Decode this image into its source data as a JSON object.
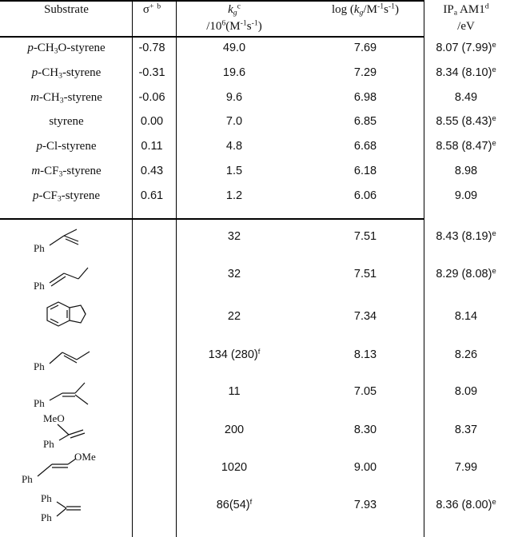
{
  "headers": {
    "substrate": "Substrate",
    "sigma": {
      "base": "σ",
      "sup1": "+",
      "sup2": "b"
    },
    "kg": {
      "k": "k",
      "sub": "g",
      "sup": "c",
      "unit_pre": "/10",
      "unit_exp": "6",
      "unit_mid": "(M",
      "unit_exp2": "-1",
      "unit_s": "s",
      "unit_exp3": "-1",
      "unit_end": ")"
    },
    "log": {
      "pre": "log (",
      "k": "k",
      "sub": "g",
      "mid": "/M",
      "exp1": "-1",
      "s": "s",
      "exp2": "-1",
      "end": ")"
    },
    "ip": {
      "main": "IP",
      "sub": "a",
      "rest": " AM1",
      "sup": "d",
      "unit": "/eV"
    }
  },
  "substituted_styrenes": [
    {
      "prefix": "p",
      "name": "-CH",
      "sub": "3",
      "rest": "O-styrene",
      "sigma": "-0.78",
      "kg": "49.0",
      "log": "7.69",
      "ip": "8.07 (7.99)",
      "ip_sup": "e"
    },
    {
      "prefix": "p",
      "name": "-CH",
      "sub": "3",
      "rest": "-styrene",
      "sigma": "-0.31",
      "kg": "19.6",
      "log": "7.29",
      "ip": "8.34 (8.10)",
      "ip_sup": "e"
    },
    {
      "prefix": "m",
      "name": "-CH",
      "sub": "3",
      "rest": "-styrene",
      "sigma": "-0.06",
      "kg": "9.6",
      "log": "6.98",
      "ip": "8.49",
      "ip_sup": ""
    },
    {
      "prefix": "",
      "name": "styrene",
      "sub": "",
      "rest": "",
      "sigma": "0.00",
      "kg": "7.0",
      "log": "6.85",
      "ip": "8.55 (8.43)",
      "ip_sup": "e"
    },
    {
      "prefix": "p",
      "name": "-Cl-styrene",
      "sub": "",
      "rest": "",
      "sigma": "0.11",
      "kg": "4.8",
      "log": "6.68",
      "ip": "8.58 (8.47)",
      "ip_sup": "e"
    },
    {
      "prefix": "m",
      "name": "-CF",
      "sub": "3",
      "rest": "-styrene",
      "sigma": "0.43",
      "kg": "1.5",
      "log": "6.18",
      "ip": "8.98",
      "ip_sup": ""
    },
    {
      "prefix": "p",
      "name": "-CF",
      "sub": "3",
      "rest": "-styrene",
      "sigma": "0.61",
      "kg": "1.2",
      "log": "6.06",
      "ip": "9.09",
      "ip_sup": ""
    }
  ],
  "structure_rows": [
    {
      "kg": "32",
      "kg_sup": "",
      "log": "7.51",
      "ip": "8.43 (8.19)",
      "ip_sup": "e"
    },
    {
      "kg": "32",
      "kg_sup": "",
      "log": "7.51",
      "ip": "8.29 (8.08)",
      "ip_sup": "e"
    },
    {
      "kg": "22",
      "kg_sup": "",
      "log": "7.34",
      "ip": "8.14",
      "ip_sup": ""
    },
    {
      "kg": "134 (280)",
      "kg_sup": "f",
      "log": "8.13",
      "ip": "8.26",
      "ip_sup": ""
    },
    {
      "kg": "11",
      "kg_sup": "",
      "log": "7.05",
      "ip": "8.09",
      "ip_sup": ""
    },
    {
      "kg": "200",
      "kg_sup": "",
      "log": "8.30",
      "ip": "8.37",
      "ip_sup": ""
    },
    {
      "kg": "1020",
      "kg_sup": "",
      "log": "9.00",
      "ip": "7.99",
      "ip_sup": ""
    },
    {
      "kg": "86(54)",
      "kg_sup": "f",
      "log": "7.93",
      "ip": "8.36 (8.00)",
      "ip_sup": "e"
    }
  ],
  "structure_labels": {
    "ph": "Ph",
    "meo": "MeO",
    "ome": "OMe"
  }
}
